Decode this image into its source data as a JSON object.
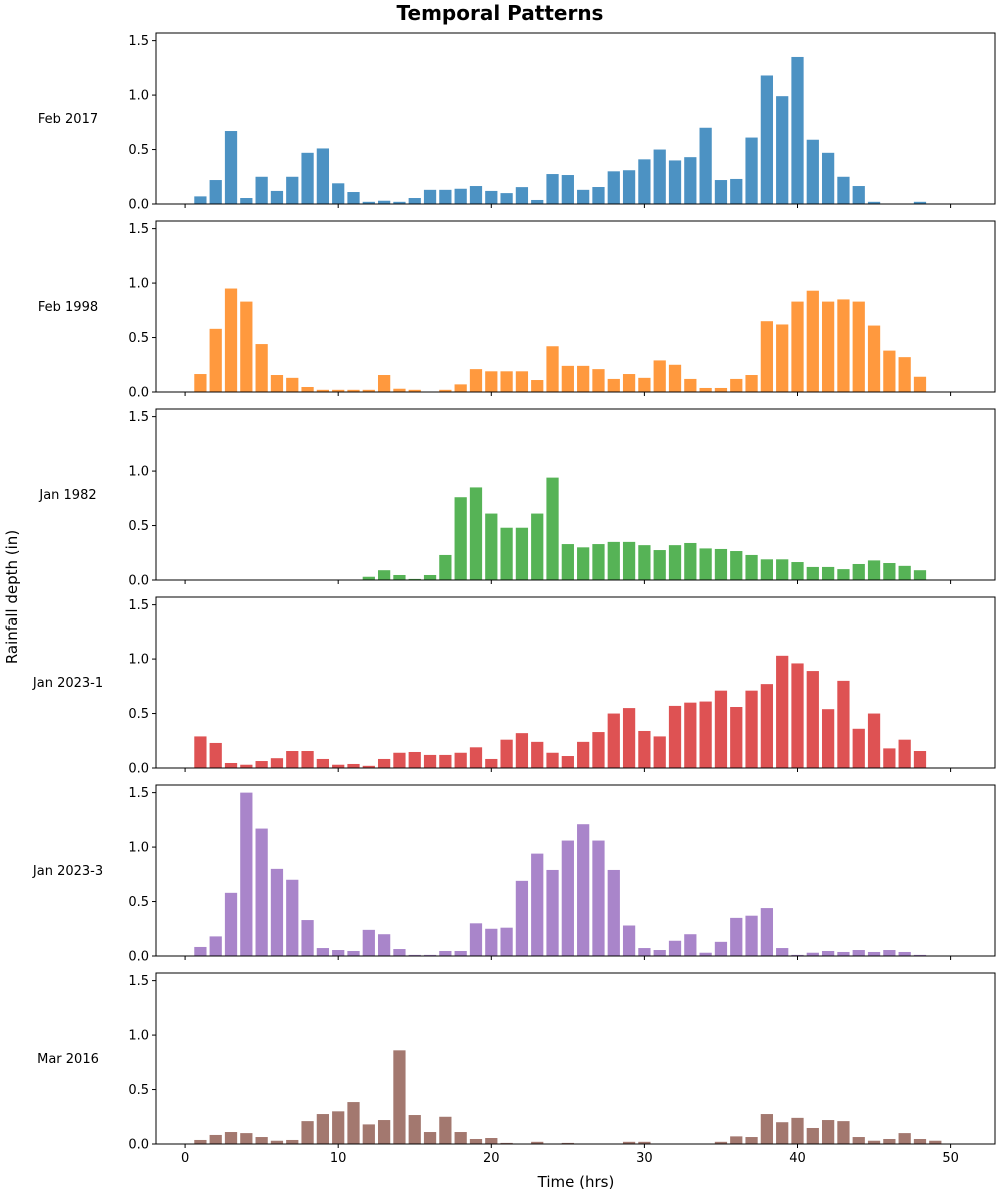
{
  "chart_data": {
    "type": "bar",
    "title": "Temporal Patterns",
    "xlabel": "Time (hrs)",
    "ylabel": "Rainfall depth (in)",
    "xlim": [
      -1.9,
      52.9
    ],
    "ylim": [
      0,
      1.57
    ],
    "xticks": [
      0,
      10,
      20,
      30,
      40,
      50
    ],
    "yticks": [
      "0.0",
      "0.5",
      "1.0",
      "1.5"
    ],
    "grid": false,
    "legend": "none",
    "layout": "6 stacked panels, shared x axis",
    "hours": [
      1,
      2,
      3,
      4,
      5,
      6,
      7,
      8,
      9,
      10,
      11,
      12,
      13,
      14,
      15,
      16,
      17,
      18,
      19,
      20,
      21,
      22,
      23,
      24,
      25,
      26,
      27,
      28,
      29,
      30,
      31,
      32,
      33,
      34,
      35,
      36,
      37,
      38,
      39,
      40,
      41,
      42,
      43,
      44,
      45,
      46,
      47,
      48,
      49
    ],
    "panels": [
      {
        "label": "Feb 2017",
        "color": "#1f77b4",
        "values": [
          0.07,
          0.22,
          0.67,
          0.055,
          0.25,
          0.12,
          0.25,
          0.47,
          0.51,
          0.19,
          0.11,
          0.02,
          0.03,
          0.02,
          0.055,
          0.13,
          0.13,
          0.14,
          0.165,
          0.12,
          0.1,
          0.155,
          0.037,
          0.275,
          0.266,
          0.13,
          0.156,
          0.3,
          0.31,
          0.41,
          0.5,
          0.4,
          0.43,
          0.7,
          0.22,
          0.23,
          0.61,
          1.18,
          0.99,
          1.35,
          0.59,
          0.47,
          0.25,
          0.165,
          0.02,
          0,
          0,
          0.02,
          0
        ]
      },
      {
        "label": "Feb 1998",
        "color": "#ff7f0e",
        "values": [
          0.165,
          0.58,
          0.95,
          0.83,
          0.44,
          0.156,
          0.13,
          0.046,
          0.02,
          0.02,
          0.02,
          0.02,
          0.156,
          0.03,
          0.02,
          0,
          0.02,
          0.07,
          0.21,
          0.19,
          0.19,
          0.19,
          0.11,
          0.42,
          0.24,
          0.24,
          0.21,
          0.12,
          0.165,
          0.13,
          0.29,
          0.25,
          0.12,
          0.037,
          0.037,
          0.12,
          0.156,
          0.65,
          0.62,
          0.83,
          0.93,
          0.83,
          0.85,
          0.83,
          0.61,
          0.38,
          0.32,
          0.14,
          0
        ]
      },
      {
        "label": "Jan 1982",
        "color": "#2ca02c",
        "values": [
          0,
          0,
          0,
          0,
          0,
          0,
          0,
          0,
          0,
          0,
          0,
          0.03,
          0.09,
          0.046,
          0.01,
          0.046,
          0.23,
          0.76,
          0.85,
          0.61,
          0.48,
          0.48,
          0.61,
          0.94,
          0.33,
          0.3,
          0.33,
          0.35,
          0.35,
          0.32,
          0.275,
          0.32,
          0.34,
          0.29,
          0.285,
          0.266,
          0.23,
          0.19,
          0.19,
          0.165,
          0.12,
          0.12,
          0.1,
          0.147,
          0.18,
          0.156,
          0.13,
          0.09,
          0
        ]
      },
      {
        "label": "Jan 2023-1",
        "color": "#d62728",
        "values": [
          0.29,
          0.23,
          0.046,
          0.03,
          0.064,
          0.09,
          0.156,
          0.156,
          0.083,
          0.03,
          0.037,
          0.02,
          0.083,
          0.14,
          0.147,
          0.12,
          0.12,
          0.14,
          0.19,
          0.083,
          0.26,
          0.32,
          0.24,
          0.14,
          0.11,
          0.24,
          0.33,
          0.5,
          0.55,
          0.34,
          0.29,
          0.57,
          0.6,
          0.61,
          0.71,
          0.56,
          0.71,
          0.77,
          1.03,
          0.96,
          0.89,
          0.54,
          0.8,
          0.36,
          0.5,
          0.18,
          0.26,
          0.156,
          0
        ]
      },
      {
        "label": "Jan 2023-3",
        "color": "#9467bd",
        "values": [
          0.083,
          0.18,
          0.58,
          1.5,
          1.17,
          0.8,
          0.7,
          0.33,
          0.073,
          0.055,
          0.046,
          0.24,
          0.2,
          0.064,
          0.01,
          0.01,
          0.046,
          0.046,
          0.3,
          0.25,
          0.26,
          0.69,
          0.94,
          0.79,
          1.06,
          1.21,
          1.06,
          0.79,
          0.28,
          0.073,
          0.055,
          0.14,
          0.2,
          0.03,
          0.13,
          0.35,
          0.37,
          0.44,
          0.073,
          0.01,
          0.03,
          0.046,
          0.037,
          0.055,
          0.037,
          0.055,
          0.037,
          0.01,
          0
        ]
      },
      {
        "label": "Mar 2016",
        "color": "#8c564b",
        "values": [
          0.037,
          0.083,
          0.11,
          0.1,
          0.064,
          0.03,
          0.037,
          0.21,
          0.275,
          0.3,
          0.385,
          0.18,
          0.22,
          0.86,
          0.266,
          0.11,
          0.25,
          0.11,
          0.046,
          0.055,
          0.01,
          0,
          0.02,
          0,
          0.01,
          0,
          0,
          0,
          0.02,
          0.02,
          0,
          0,
          0,
          0,
          0.02,
          0.07,
          0.064,
          0.275,
          0.2,
          0.24,
          0.147,
          0.22,
          0.21,
          0.064,
          0.03,
          0.046,
          0.1,
          0.046,
          0.03
        ]
      }
    ]
  }
}
